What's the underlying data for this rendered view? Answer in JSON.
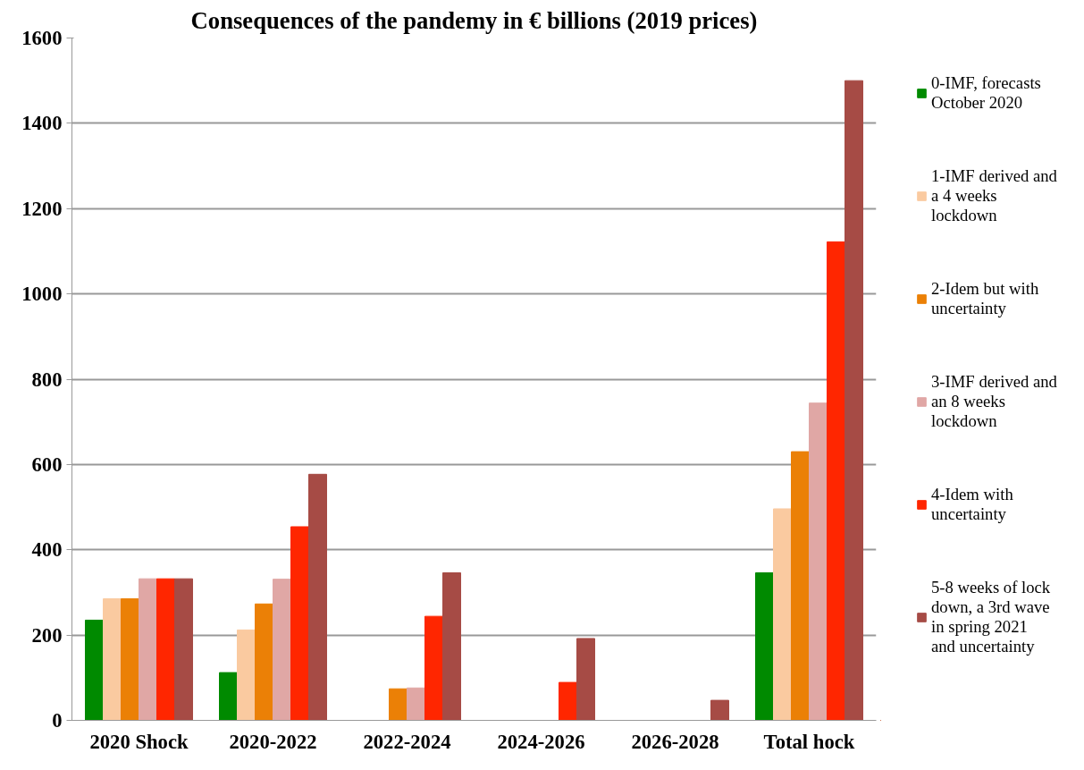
{
  "chart_data": {
    "type": "bar",
    "title": "Consequences of the pandemy in € billions (2019 prices)",
    "categories": [
      "2020 Shock",
      "2020-2022",
      "2022-2024",
      "2024-2026",
      "2026-2028",
      "Total hock"
    ],
    "series": [
      {
        "name": "0-IMF, forecasts October 2020",
        "color": "#008a00",
        "values": [
          235,
          112,
          null,
          null,
          null,
          346
        ]
      },
      {
        "name": "1-IMF derived and a 4 weeks lockdown",
        "color": "#facaa0",
        "values": [
          285,
          212,
          null,
          null,
          null,
          496
        ]
      },
      {
        "name": "2-Idem but with uncertainty",
        "color": "#eb8006",
        "values": [
          285,
          273,
          74,
          null,
          null,
          630
        ]
      },
      {
        "name": "3-IMF derived and an 8 weeks lockdown",
        "color": "#e0a7a5",
        "values": [
          332,
          331,
          76,
          null,
          null,
          744
        ]
      },
      {
        "name": "4-Idem with uncertainty",
        "color": "#ff2600",
        "values": [
          332,
          454,
          244,
          89,
          null,
          1122
        ]
      },
      {
        "name": "5-8 weeks of lock down, a 3rd wave in spring 2021 and uncertainty",
        "color": "#a64b45",
        "values": [
          332,
          577,
          346,
          192,
          47,
          1500
        ]
      }
    ],
    "ylim": [
      0,
      1600
    ],
    "yticks": [
      0,
      200,
      400,
      600,
      800,
      1000,
      1200,
      1400,
      1600
    ],
    "grid": "y",
    "legend": "right"
  }
}
